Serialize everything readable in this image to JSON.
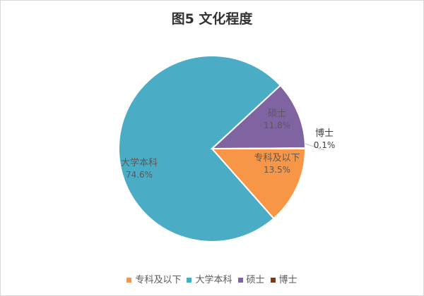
{
  "chart_data": {
    "type": "pie",
    "title": "图5 文化程度",
    "categories": [
      "专科及以下",
      "大学本科",
      "硕士",
      "博士"
    ],
    "values": [
      13.5,
      74.6,
      11.8,
      0.1
    ],
    "labels": [
      "13.5%",
      "74.6%",
      "11.8%",
      "0.1%"
    ],
    "colors": [
      "#F79646",
      "#4BACC6",
      "#8064A2",
      "#7B3A10"
    ],
    "legend": "bottom",
    "start_angle": "3 o'clock, clockwise"
  }
}
